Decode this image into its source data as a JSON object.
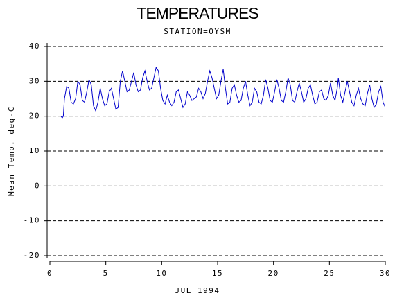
{
  "chart_data": {
    "type": "line",
    "title": "TEMPERATURES",
    "subtitle": "STATION=OYSM",
    "xlabel": "JUL 1994",
    "ylabel": "Mean Temp. deg-C",
    "xlim": [
      0,
      30
    ],
    "xticks": [
      0,
      5,
      10,
      15,
      20,
      25,
      30
    ],
    "ylim": [
      -20,
      40
    ],
    "yticks": [
      -20,
      -10,
      0,
      10,
      20,
      30,
      40
    ],
    "grid": true,
    "series": [
      {
        "color": "#0000cc",
        "x": [
          1.0,
          1.1,
          1.2,
          1.3,
          1.5,
          1.7,
          1.9,
          2.1,
          2.3,
          2.5,
          2.7,
          2.9,
          3.1,
          3.3,
          3.5,
          3.7,
          3.9,
          4.1,
          4.3,
          4.5,
          4.7,
          4.9,
          5.1,
          5.3,
          5.5,
          5.7,
          5.9,
          6.1,
          6.3,
          6.5,
          6.7,
          6.9,
          7.1,
          7.3,
          7.5,
          7.7,
          7.9,
          8.1,
          8.3,
          8.5,
          8.7,
          8.9,
          9.1,
          9.3,
          9.5,
          9.7,
          9.9,
          10.1,
          10.3,
          10.5,
          10.7,
          10.9,
          11.1,
          11.3,
          11.5,
          11.7,
          11.9,
          12.1,
          12.3,
          12.5,
          12.7,
          12.9,
          13.1,
          13.3,
          13.5,
          13.7,
          13.9,
          14.1,
          14.3,
          14.5,
          14.7,
          14.9,
          15.1,
          15.3,
          15.5,
          15.7,
          15.9,
          16.1,
          16.3,
          16.5,
          16.7,
          16.9,
          17.1,
          17.3,
          17.5,
          17.7,
          17.9,
          18.1,
          18.3,
          18.5,
          18.7,
          18.9,
          19.1,
          19.3,
          19.5,
          19.7,
          19.9,
          20.1,
          20.3,
          20.5,
          20.7,
          20.9,
          21.1,
          21.3,
          21.5,
          21.7,
          21.9,
          22.1,
          22.3,
          22.5,
          22.7,
          22.9,
          23.1,
          23.3,
          23.5,
          23.7,
          23.9,
          24.1,
          24.3,
          24.5,
          24.7,
          24.9,
          25.1,
          25.3,
          25.5,
          25.7,
          25.8,
          26.0,
          26.2,
          26.4,
          26.6,
          26.8,
          27.0,
          27.2,
          27.4,
          27.6,
          27.8,
          28.0,
          28.2,
          28.4,
          28.6,
          28.8,
          29.0,
          29.2,
          29.4,
          29.6,
          29.8,
          30.0
        ],
        "values": [
          20,
          19.5,
          20,
          25,
          28.5,
          28,
          24,
          23.5,
          25,
          30,
          29,
          24.5,
          24,
          27,
          30.5,
          29,
          23,
          21.5,
          24,
          28,
          25,
          23,
          23.5,
          27,
          28,
          25,
          22,
          22.5,
          30,
          33,
          30,
          27,
          27.5,
          30,
          32.5,
          29,
          27,
          27.5,
          31,
          33,
          30,
          27.5,
          28,
          31,
          34,
          33,
          28,
          24.5,
          23.5,
          26,
          24,
          23,
          24,
          27,
          27.5,
          25,
          22.5,
          23.5,
          27,
          26,
          24.5,
          25,
          25.5,
          28,
          27,
          25,
          26.5,
          30,
          33,
          31,
          28,
          25,
          26,
          30,
          33.5,
          28,
          23.5,
          24,
          28,
          29,
          26,
          24,
          24.5,
          28,
          30,
          26,
          23,
          24,
          28,
          27,
          24,
          23.5,
          26,
          30.5,
          28,
          24.5,
          24,
          27,
          30.5,
          28,
          24.5,
          24,
          27,
          31,
          29,
          24.5,
          24,
          27,
          29.5,
          27,
          24,
          25,
          28,
          29,
          26,
          23.5,
          24,
          27,
          27.5,
          25,
          24.5,
          26,
          29.5,
          26,
          24.5,
          28,
          31,
          26,
          24,
          27,
          30,
          27,
          24,
          23,
          26,
          28,
          25,
          23.5,
          23,
          26.5,
          29,
          25,
          22.5,
          23.5,
          27,
          28.5,
          24,
          22.5
        ]
      }
    ]
  }
}
